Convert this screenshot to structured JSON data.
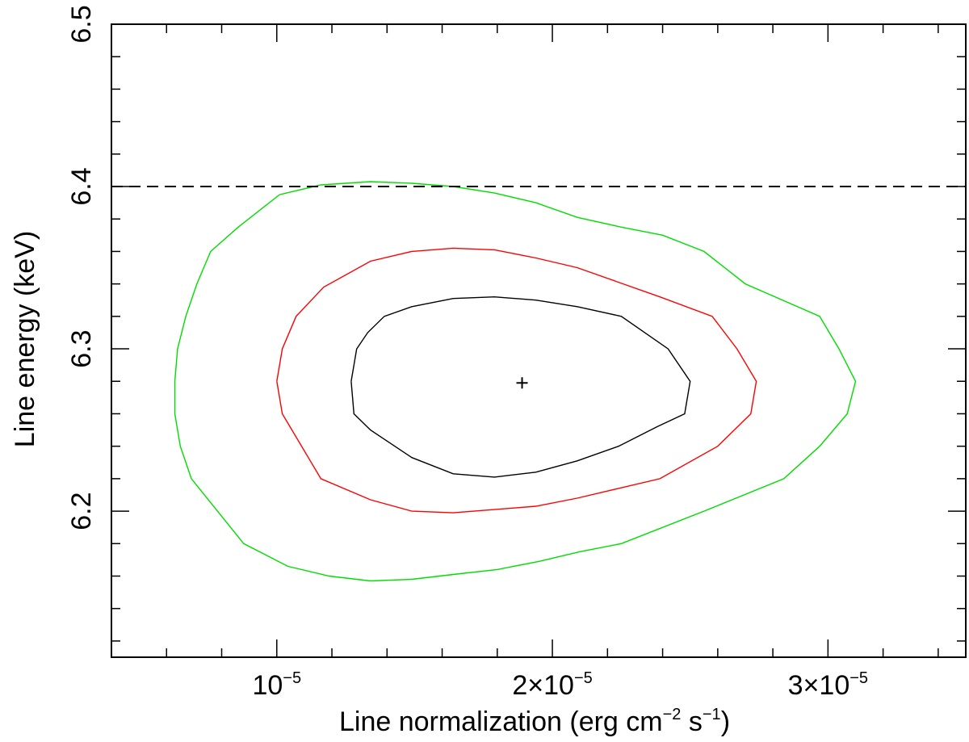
{
  "chart_data": {
    "type": "contour",
    "xlabel_main": "Line normalization (erg cm",
    "xlabel_exp1": "−2",
    "xlabel_mid": " s",
    "xlabel_exp2": "−1",
    "xlabel_end": ")",
    "ylabel": "Line energy (keV)",
    "xlim": [
      4e-06,
      3.5e-05
    ],
    "ylim": [
      6.11,
      6.5
    ],
    "x_ticks": [
      {
        "value": 1e-05,
        "mant": "10",
        "exp": "−5"
      },
      {
        "value": 2e-05,
        "mant": "2×10",
        "exp": "−5"
      },
      {
        "value": 3e-05,
        "mant": "3×10",
        "exp": "−5"
      }
    ],
    "x_minor_step": 2e-06,
    "y_ticks": [
      {
        "value": 6.2,
        "label": "6.2"
      },
      {
        "value": 6.3,
        "label": "6.3"
      },
      {
        "value": 6.4,
        "label": "6.4"
      },
      {
        "value": 6.5,
        "label": "6.5"
      }
    ],
    "y_minor_step": 0.02,
    "reference_line": {
      "y": 6.4,
      "style": "dashed",
      "color": "#000000"
    },
    "best_fit": {
      "x": 1.89e-05,
      "y": 6.279
    },
    "contours": [
      {
        "color": "#000000",
        "points": [
          [
            1.27e-05,
            6.28
          ],
          [
            1.29e-05,
            6.3
          ],
          [
            1.33e-05,
            6.31
          ],
          [
            1.39e-05,
            6.32
          ],
          [
            1.49e-05,
            6.326
          ],
          [
            1.64e-05,
            6.331
          ],
          [
            1.79e-05,
            6.332
          ],
          [
            1.94e-05,
            6.33
          ],
          [
            2.09e-05,
            6.326
          ],
          [
            2.25e-05,
            6.32
          ],
          [
            2.42e-05,
            6.3
          ],
          [
            2.5e-05,
            6.28
          ],
          [
            2.48e-05,
            6.26
          ],
          [
            2.38e-05,
            6.252
          ],
          [
            2.24e-05,
            6.24
          ],
          [
            2.09e-05,
            6.231
          ],
          [
            1.94e-05,
            6.224
          ],
          [
            1.79e-05,
            6.221
          ],
          [
            1.64e-05,
            6.223
          ],
          [
            1.49e-05,
            6.233
          ],
          [
            1.34e-05,
            6.25
          ],
          [
            1.28e-05,
            6.26
          ],
          [
            1.27e-05,
            6.28
          ]
        ]
      },
      {
        "color": "#ff0000",
        "points": [
          [
            1e-05,
            6.28
          ],
          [
            1.02e-05,
            6.3
          ],
          [
            1.07e-05,
            6.32
          ],
          [
            1.17e-05,
            6.338
          ],
          [
            1.34e-05,
            6.354
          ],
          [
            1.49e-05,
            6.36
          ],
          [
            1.64e-05,
            6.362
          ],
          [
            1.79e-05,
            6.361
          ],
          [
            1.94e-05,
            6.356
          ],
          [
            2.09e-05,
            6.35
          ],
          [
            2.24e-05,
            6.341
          ],
          [
            2.39e-05,
            6.332
          ],
          [
            2.58e-05,
            6.32
          ],
          [
            2.67e-05,
            6.3
          ],
          [
            2.74e-05,
            6.28
          ],
          [
            2.72e-05,
            6.26
          ],
          [
            2.6e-05,
            6.24
          ],
          [
            2.39e-05,
            6.22
          ],
          [
            2.24e-05,
            6.214
          ],
          [
            2.09e-05,
            6.208
          ],
          [
            1.94e-05,
            6.203
          ],
          [
            1.79e-05,
            6.201
          ],
          [
            1.64e-05,
            6.199
          ],
          [
            1.49e-05,
            6.2
          ],
          [
            1.34e-05,
            6.207
          ],
          [
            1.16e-05,
            6.22
          ],
          [
            1.02e-05,
            6.26
          ],
          [
            1e-05,
            6.28
          ]
        ]
      },
      {
        "color": "#00dd00",
        "points": [
          [
            6.3e-06,
            6.28
          ],
          [
            6.4e-06,
            6.3
          ],
          [
            6.7e-06,
            6.32
          ],
          [
            7.1e-06,
            6.34
          ],
          [
            7.6e-06,
            6.36
          ],
          [
            8.6e-06,
            6.375
          ],
          [
            1.01e-05,
            6.395
          ],
          [
            1.16e-05,
            6.401
          ],
          [
            1.34e-05,
            6.403
          ],
          [
            1.49e-05,
            6.402
          ],
          [
            1.64e-05,
            6.4
          ],
          [
            1.79e-05,
            6.396
          ],
          [
            1.94e-05,
            6.39
          ],
          [
            2.09e-05,
            6.381
          ],
          [
            2.25e-05,
            6.375
          ],
          [
            2.4e-05,
            6.37
          ],
          [
            2.55e-05,
            6.36
          ],
          [
            2.7e-05,
            6.34
          ],
          [
            2.97e-05,
            6.32
          ],
          [
            3.04e-05,
            6.3
          ],
          [
            3.1e-05,
            6.28
          ],
          [
            3.07e-05,
            6.26
          ],
          [
            2.97e-05,
            6.24
          ],
          [
            2.84e-05,
            6.22
          ],
          [
            2.55e-05,
            6.2
          ],
          [
            2.25e-05,
            6.18
          ],
          [
            2.1e-05,
            6.175
          ],
          [
            1.95e-05,
            6.169
          ],
          [
            1.8e-05,
            6.164
          ],
          [
            1.64e-05,
            6.161
          ],
          [
            1.49e-05,
            6.158
          ],
          [
            1.34e-05,
            6.157
          ],
          [
            1.19e-05,
            6.16
          ],
          [
            1.04e-05,
            6.166
          ],
          [
            8.8e-06,
            6.18
          ],
          [
            6.9e-06,
            6.22
          ],
          [
            6.5e-06,
            6.24
          ],
          [
            6.3e-06,
            6.26
          ],
          [
            6.3e-06,
            6.28
          ]
        ]
      }
    ]
  }
}
